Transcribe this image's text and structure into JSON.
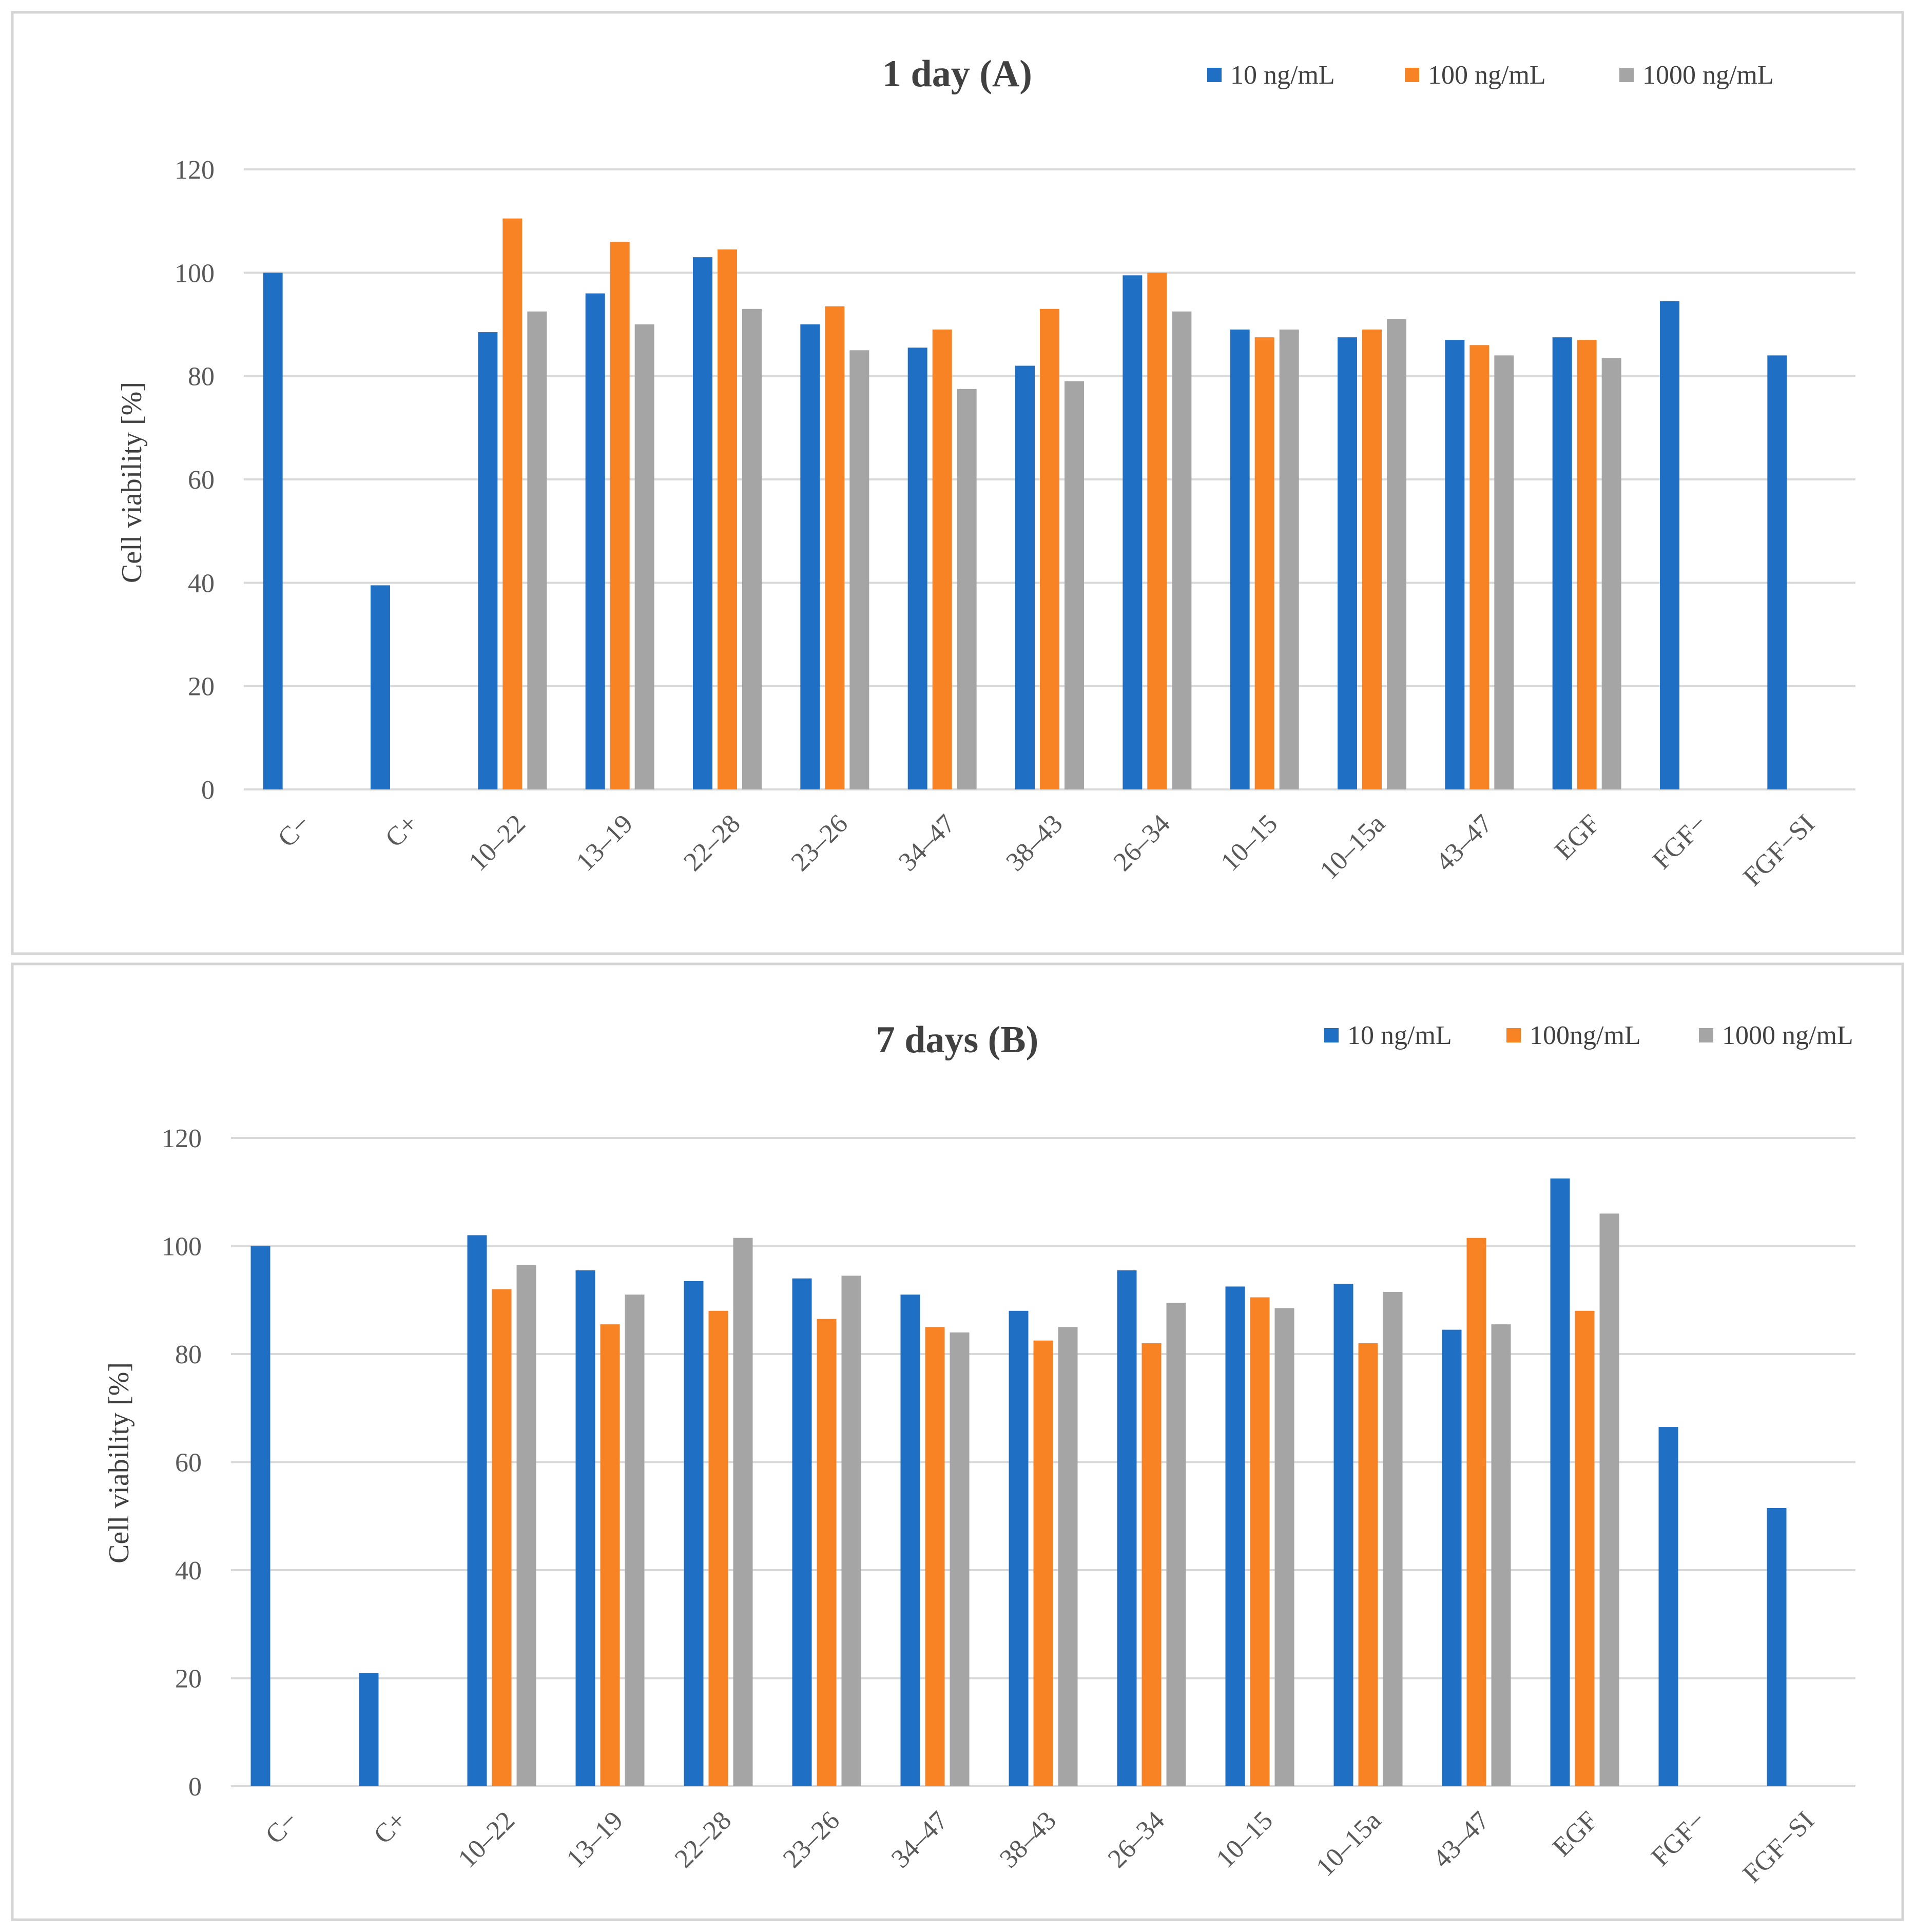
{
  "chart_data": [
    {
      "type": "bar",
      "title": "1 day (A)",
      "xlabel": "",
      "ylabel": "Cell viability  [%]",
      "ylim": [
        0,
        120
      ],
      "yticks": [
        0,
        20,
        40,
        60,
        80,
        100,
        120
      ],
      "grid": true,
      "legend_position": "top-right",
      "categories": [
        "C−",
        "C+",
        "10–22",
        "13–19",
        "22–28",
        "23–26",
        "34–47",
        "38–43",
        "26–34",
        "10–15",
        "10–15a",
        "43–47",
        "EGF",
        "FGF−",
        "FGF−SI"
      ],
      "series": [
        {
          "name": "10 ng/mL",
          "color": "#1f6fc5",
          "values": [
            100,
            39.5,
            88.5,
            96,
            103,
            90,
            85.5,
            82,
            99.5,
            89,
            87.5,
            87,
            87.5,
            94.5,
            84
          ]
        },
        {
          "name": "100 ng/mL",
          "color": "#f78325",
          "values": [
            null,
            null,
            110.5,
            106,
            104.5,
            93.5,
            89,
            93,
            100,
            87.5,
            89,
            86,
            87,
            null,
            null
          ]
        },
        {
          "name": "1000 ng/mL",
          "color": "#a5a5a5",
          "values": [
            null,
            null,
            92.5,
            90,
            93,
            85,
            77.5,
            79,
            92.5,
            89,
            91,
            84,
            83.5,
            null,
            null
          ]
        }
      ]
    },
    {
      "type": "bar",
      "title": "7 days (B)",
      "xlabel": "",
      "ylabel": "Cell viability  [%]",
      "ylim": [
        0,
        120
      ],
      "yticks": [
        0,
        20,
        40,
        60,
        80,
        100,
        120
      ],
      "grid": true,
      "legend_position": "top-right",
      "categories": [
        "C−",
        "C+",
        "10–22",
        "13–19",
        "22–28",
        "23–26",
        "34–47",
        "38–43",
        "26–34",
        "10–15",
        "10–15a",
        "43–47",
        "EGF",
        "FGF−",
        "FGF−SI"
      ],
      "series": [
        {
          "name": "10 ng/mL",
          "color": "#1f6fc5",
          "values": [
            100,
            21,
            102,
            95.5,
            93.5,
            94,
            91,
            88,
            95.5,
            92.5,
            93,
            84.5,
            112.5,
            66.5,
            51.5
          ]
        },
        {
          "name": "100ng/mL",
          "color": "#f78325",
          "values": [
            null,
            null,
            92,
            85.5,
            88,
            86.5,
            85,
            82.5,
            82,
            90.5,
            82,
            101.5,
            88,
            null,
            null
          ]
        },
        {
          "name": "1000 ng/mL",
          "color": "#a5a5a5",
          "values": [
            null,
            null,
            96.5,
            91,
            101.5,
            94.5,
            84,
            85,
            89.5,
            88.5,
            91.5,
            85.5,
            106,
            null,
            null
          ]
        }
      ]
    }
  ]
}
